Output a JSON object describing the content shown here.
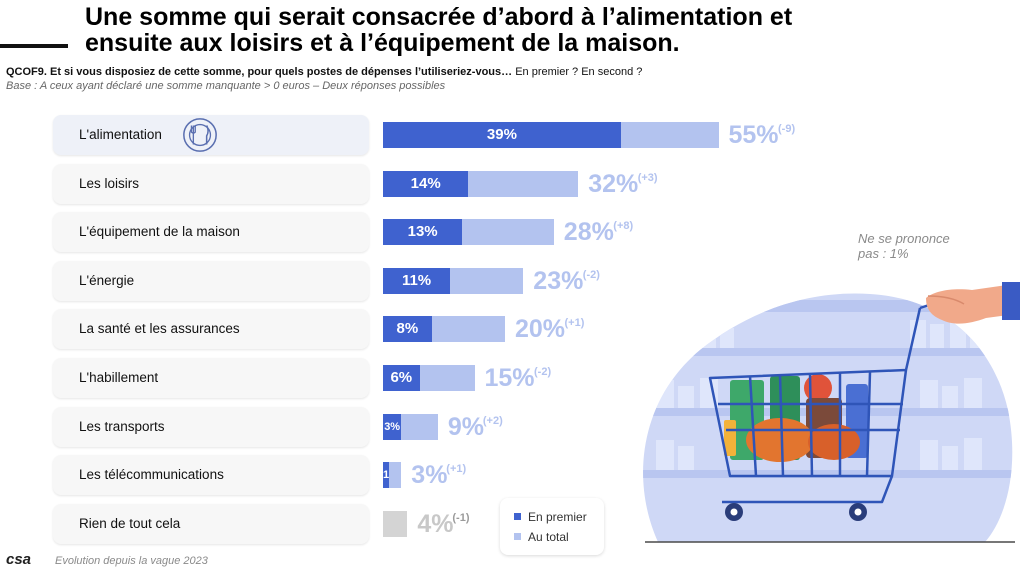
{
  "title": "Une somme qui serait consacrée d’abord à l’alimentation et ensuite aux loisirs et à l’équipement de la maison.",
  "question": {
    "code_text": "QCOF9. Et si vous disposiez de cette somme, pour quels postes de dépenses l’utiliseriez-vous…",
    "suffix": " En premier ? En second ?"
  },
  "base": "Base : A ceux ayant déclaré une somme manquante > 0 euros – Deux réponses possibles",
  "colors": {
    "first": "#3f62cf",
    "total": "#b3c3ef",
    "grey": "#d4d4d4"
  },
  "chart_data": {
    "type": "bar",
    "orientation": "horizontal",
    "stacked": "overlay",
    "categories": [
      "L'alimentation",
      "Les loisirs",
      "L'équipement de la maison",
      "L'énergie",
      "La santé et les assurances",
      "L'habillement",
      "Les transports",
      "Les télécommunications",
      "Rien de tout cela"
    ],
    "series": [
      {
        "name": "En premier",
        "values": [
          39,
          14,
          13,
          11,
          8,
          6,
          3,
          1,
          null
        ],
        "labels": [
          "39%",
          "14%",
          "13%",
          "11%",
          "8%",
          "6%",
          "3%",
          "1",
          ""
        ]
      },
      {
        "name": "Au total",
        "values": [
          55,
          32,
          28,
          23,
          20,
          15,
          9,
          3,
          4
        ],
        "labels": [
          "55%",
          "32%",
          "28%",
          "23%",
          "20%",
          "15%",
          "9%",
          "3%",
          "4%"
        ]
      }
    ],
    "evolution": [
      "(-9)",
      "(+3)",
      "(+8)",
      "(-2)",
      "(+1)",
      "(-2)",
      "(+2)",
      "(+1)",
      "(-1)"
    ],
    "annotations": [
      "Ne se prononce pas : 1%"
    ],
    "xlim": [
      0,
      60
    ],
    "legend": "bottom-center"
  },
  "legend": {
    "first": "En premier",
    "total": "Au total"
  },
  "nsp_note": "Ne se prononce pas : 1%",
  "icons": {
    "row_icon": "plate-cutlery-icon",
    "illustration": "shopping-cart-illustration",
    "logo": "csa-logo"
  },
  "footer": {
    "logo_text": "csa",
    "note": "Evolution depuis la vague 2023"
  }
}
